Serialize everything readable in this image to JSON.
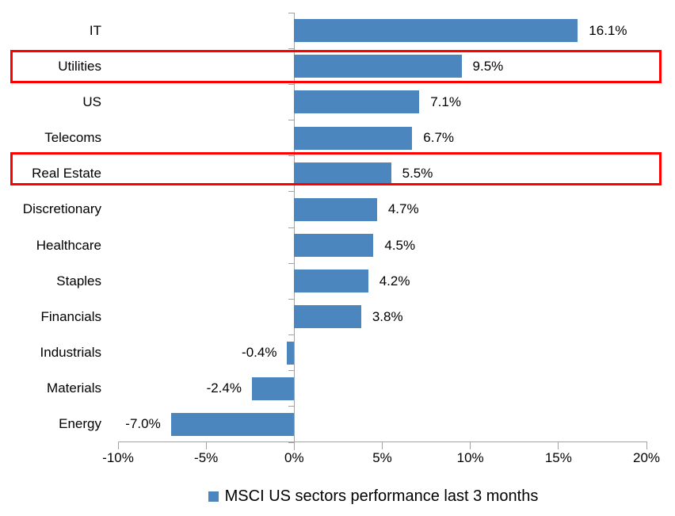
{
  "chart_data": {
    "type": "bar",
    "orientation": "horizontal",
    "categories": [
      "IT",
      "Utilities",
      "US",
      "Telecoms",
      "Real Estate",
      "Discretionary",
      "Healthcare",
      "Staples",
      "Financials",
      "Industrials",
      "Materials",
      "Energy"
    ],
    "values": [
      16.1,
      9.5,
      7.1,
      6.7,
      5.5,
      4.7,
      4.5,
      4.2,
      3.8,
      -0.4,
      -2.4,
      -7.0
    ],
    "data_labels": [
      "16.1%",
      "9.5%",
      "7.1%",
      "6.7%",
      "5.5%",
      "4.7%",
      "4.5%",
      "4.2%",
      "3.8%",
      "-0.4%",
      "-2.4%",
      "-7.0%"
    ],
    "xlim": [
      -10,
      20
    ],
    "x_ticks": [
      -10,
      -5,
      0,
      5,
      10,
      15,
      20
    ],
    "x_tick_labels": [
      "-10%",
      "-5%",
      "0%",
      "5%",
      "10%",
      "15%",
      "20%"
    ],
    "grid": false,
    "legend": {
      "label": "MSCI US sectors performance last 3 months",
      "position": "bottom"
    },
    "highlighted_categories": [
      "Utilities",
      "Real Estate"
    ],
    "colors": {
      "bar": "#4C86BE",
      "highlight_border": "#FE0000",
      "axis": "#A3A3A3",
      "text": "#000000"
    }
  }
}
